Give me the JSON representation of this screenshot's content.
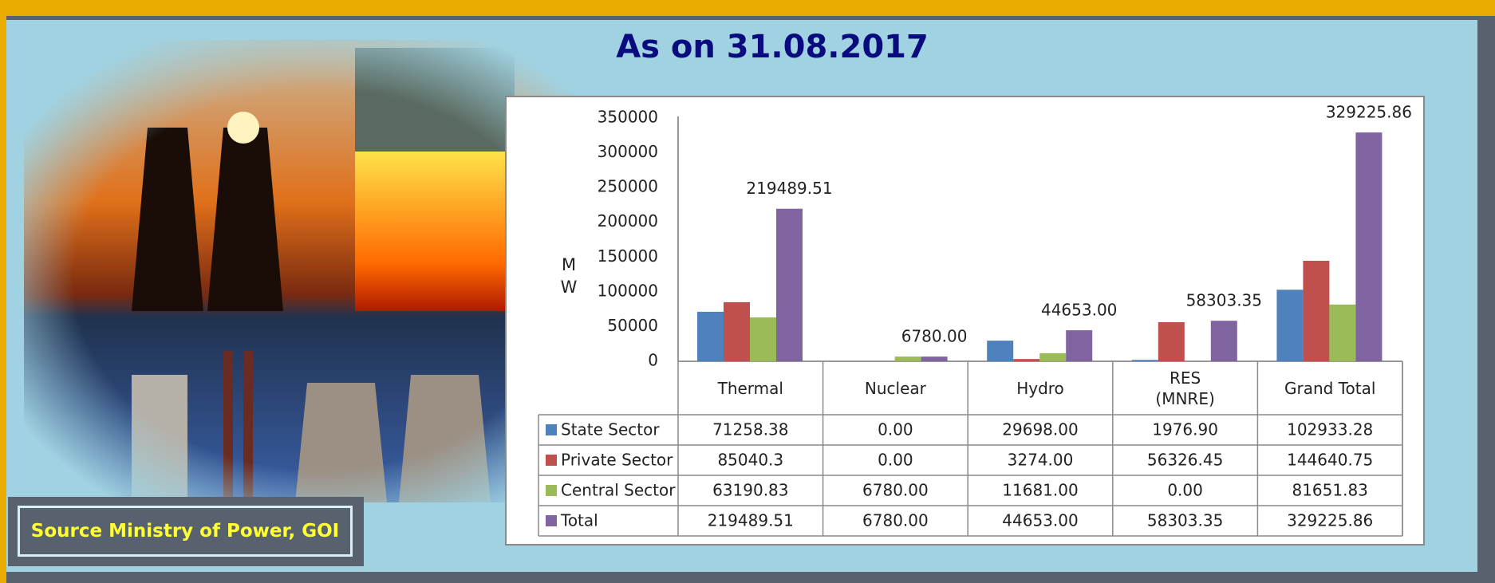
{
  "title": "As on 31.08.2017",
  "source": "Source Ministry of Power, GOI",
  "chart_data": {
    "type": "bar",
    "ylabel": "MW",
    "categories": [
      "Thermal",
      "Nuclear",
      "Hydro",
      "RES\n(MNRE)",
      "Grand Total"
    ],
    "ylim": [
      0,
      350000
    ],
    "yticks": [
      0,
      50000,
      100000,
      150000,
      200000,
      250000,
      300000,
      350000
    ],
    "grid": false,
    "series": [
      {
        "name": "State Sector",
        "color": "#4f81bd",
        "values": [
          71258.38,
          0.0,
          29698.0,
          1976.9,
          102933.28
        ],
        "value_labels": [
          "71258.38",
          "0.00",
          "29698.00",
          "1976.90",
          "102933.28"
        ]
      },
      {
        "name": "Private Sector",
        "color": "#c0504d",
        "values": [
          85040.3,
          0.0,
          3274.0,
          56326.45,
          144640.75
        ],
        "value_labels": [
          "85040.3",
          "0.00",
          "3274.00",
          "56326.45",
          "144640.75"
        ]
      },
      {
        "name": "Central Sector",
        "color": "#9bbb59",
        "values": [
          63190.83,
          6780.0,
          11681.0,
          0.0,
          81651.83
        ],
        "value_labels": [
          "63190.83",
          "6780.00",
          "11681.00",
          "0.00",
          "81651.83"
        ]
      },
      {
        "name": "Total",
        "color": "#8064a2",
        "values": [
          219489.51,
          6780.0,
          44653.0,
          58303.35,
          329225.86
        ],
        "value_labels": [
          "219489.51",
          "6780.00",
          "44653.00",
          "58303.35",
          "329225.86"
        ]
      }
    ],
    "labeled_series": 3
  }
}
